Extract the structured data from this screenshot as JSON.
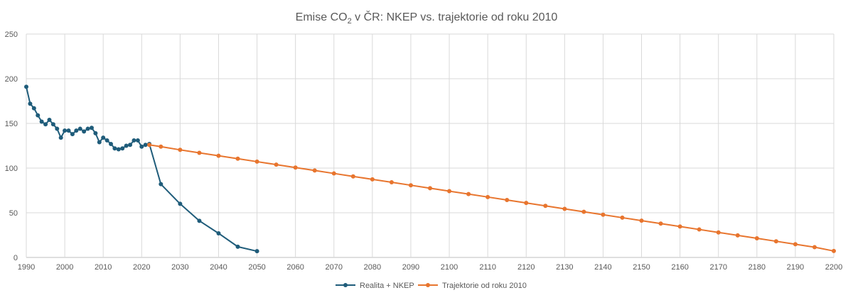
{
  "chart_data": {
    "type": "line",
    "title": {
      "prefix": "Emise CO",
      "subscript": "2",
      "suffix": " v ČR: NKEP vs. trajektorie od roku 2010"
    },
    "xlim": [
      1990,
      2200
    ],
    "ylim": [
      0,
      250
    ],
    "x_ticks": [
      "1990",
      "2000",
      "2010",
      "2020",
      "2030",
      "2040",
      "2050",
      "2060",
      "2070",
      "2080",
      "2090",
      "2100",
      "2110",
      "2120",
      "2130",
      "2140",
      "2150",
      "2160",
      "2170",
      "2180",
      "2190",
      "2200"
    ],
    "y_ticks": [
      "0",
      "50",
      "100",
      "150",
      "200",
      "250"
    ],
    "grid": true,
    "legend_position": "bottom",
    "series": [
      {
        "name": "Realita + NKEP",
        "color": "#1f5c7a",
        "x": [
          1990,
          1991,
          1992,
          1993,
          1994,
          1995,
          1996,
          1997,
          1998,
          1999,
          2000,
          2001,
          2002,
          2003,
          2004,
          2005,
          2006,
          2007,
          2008,
          2009,
          2010,
          2011,
          2012,
          2013,
          2014,
          2015,
          2016,
          2017,
          2018,
          2019,
          2020,
          2021,
          2022,
          2025,
          2030,
          2035,
          2040,
          2045,
          2050
        ],
        "y": [
          191,
          172,
          167,
          159,
          152,
          149,
          154,
          149,
          144,
          134,
          142,
          142,
          138,
          142,
          144,
          141,
          144,
          145,
          139,
          129,
          134,
          131,
          127,
          122,
          121,
          122,
          125,
          126,
          131,
          131,
          124,
          126,
          127,
          82,
          60,
          41,
          27,
          12,
          7
        ]
      },
      {
        "name": "Trajektorie od roku 2010",
        "color": "#e8752e",
        "x": [
          2022,
          2025,
          2030,
          2035,
          2040,
          2045,
          2050,
          2055,
          2060,
          2065,
          2070,
          2075,
          2080,
          2085,
          2090,
          2095,
          2100,
          2105,
          2110,
          2115,
          2120,
          2125,
          2130,
          2135,
          2140,
          2145,
          2150,
          2155,
          2160,
          2165,
          2170,
          2175,
          2180,
          2185,
          2190,
          2195,
          2200
        ],
        "y": [
          126,
          124,
          120.4,
          117.1,
          113.8,
          110.5,
          107.2,
          103.9,
          100.6,
          97.3,
          94,
          90.7,
          87.4,
          84.1,
          80.8,
          77.5,
          74.2,
          70.9,
          67.6,
          64.3,
          61,
          57.7,
          54.4,
          51.1,
          47.8,
          44.5,
          41.2,
          37.9,
          34.6,
          31.3,
          28,
          24.7,
          21.4,
          18.1,
          14.8,
          11.5,
          7.2
        ]
      }
    ]
  }
}
